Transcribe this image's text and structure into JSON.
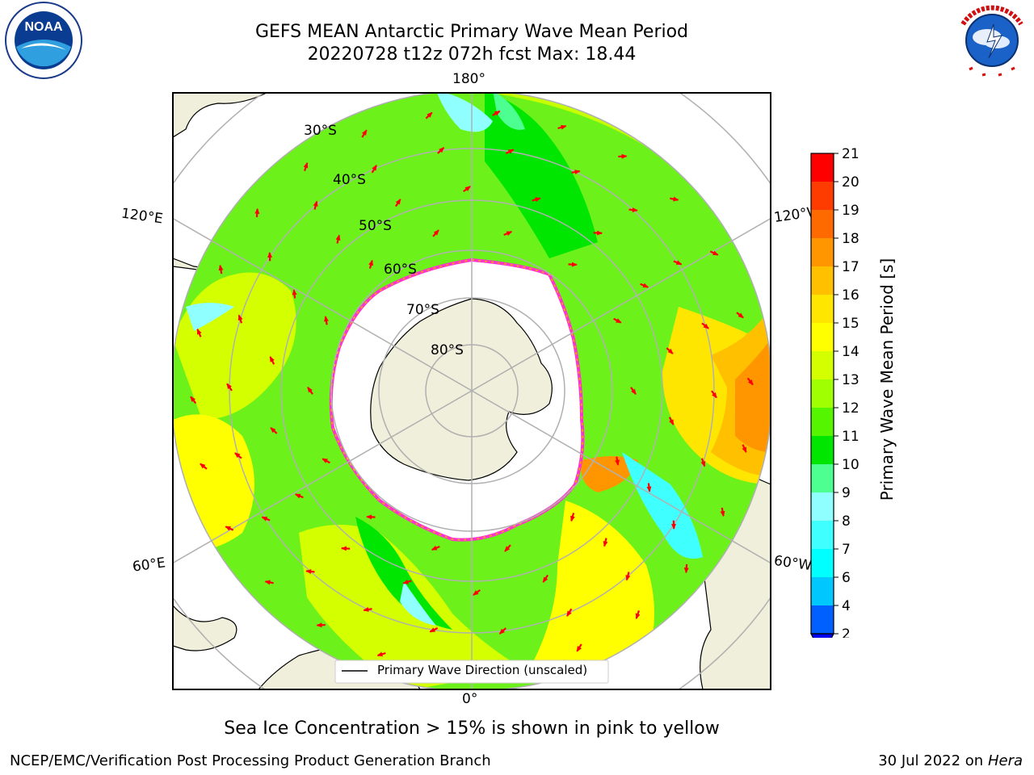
{
  "header": {
    "title_line1": "GEFS MEAN Antarctic Primary Wave Mean Period",
    "title_line2": "20220728 t12z 072h fcst   Max: 18.44"
  },
  "logos": {
    "left": {
      "name": "noaa-logo",
      "text": "NOAA",
      "ring_text": "NATIONAL OCEANIC AND ATMOSPHERIC ADMINISTRATION · U.S. DEPARTMENT OF COMMERCE"
    },
    "right": {
      "name": "nws-logo",
      "ring_text": "NATIONAL WEATHER SERVICE"
    }
  },
  "map": {
    "longitude_labels": {
      "top": "180°",
      "bottom": "0°",
      "upper_left": "120°E",
      "upper_right": "120°W",
      "lower_left": "60°E",
      "lower_right": "60°W"
    },
    "latitude_labels": [
      "30°S",
      "40°S",
      "50°S",
      "60°S",
      "70°S",
      "80°S"
    ],
    "legend_label": "Primary Wave Direction (unscaled)"
  },
  "colorbar": {
    "title": "Primary Wave Mean Period [s]",
    "ticks": [
      "2",
      "4",
      "6",
      "7",
      "8",
      "9",
      "10",
      "11",
      "12",
      "13",
      "14",
      "15",
      "16",
      "17",
      "18",
      "19",
      "20",
      "21"
    ],
    "colors": [
      "#0060ff",
      "#00c8ff",
      "#00ffff",
      "#40ffff",
      "#90ffff",
      "#4cff90",
      "#00e600",
      "#55f500",
      "#a0ff00",
      "#d4ff00",
      "#ffff00",
      "#ffe600",
      "#ffc000",
      "#ff9600",
      "#ff6a00",
      "#ff3c00",
      "#ff0000"
    ],
    "extend_color": "#0000ee"
  },
  "footer": {
    "note": "Sea Ice Concentration > 15% is shown in pink to yellow",
    "credit_left": "NCEP/EMC/Verification Post Processing Product Generation Branch",
    "credit_right_date": "30 Jul 2022 on ",
    "credit_right_host": "Hera"
  }
}
